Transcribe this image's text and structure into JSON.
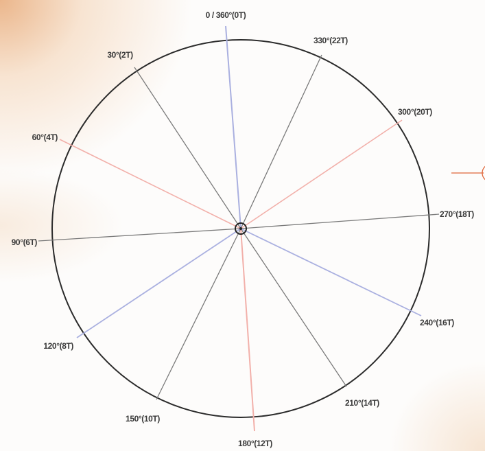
{
  "colors": {
    "background": "#fdfcfb",
    "circle": "#2b2b2b",
    "spoke_blue": "#aab0e0",
    "spoke_red": "#f2b0aa",
    "spoke_gray": "#777777",
    "indicator": "#e0663a"
  },
  "diagram": {
    "spokes": [
      {
        "label": "0 / 360°(0T)",
        "color": "blue"
      },
      {
        "label": "330°(22T)",
        "color": "gray"
      },
      {
        "label": "300°(20T)",
        "color": "red"
      },
      {
        "label": "270°(18T)",
        "color": "gray"
      },
      {
        "label": "240°(16T)",
        "color": "blue"
      },
      {
        "label": "210°(14T)",
        "color": "gray"
      },
      {
        "label": "180°(12T)",
        "color": "red"
      },
      {
        "label": "150°(10T)",
        "color": "gray"
      },
      {
        "label": "120°(8T)",
        "color": "blue"
      },
      {
        "label": "90°(6T)",
        "color": "gray"
      },
      {
        "label": "60°(4T)",
        "color": "red"
      },
      {
        "label": "30°(2T)",
        "color": "gray"
      }
    ]
  }
}
